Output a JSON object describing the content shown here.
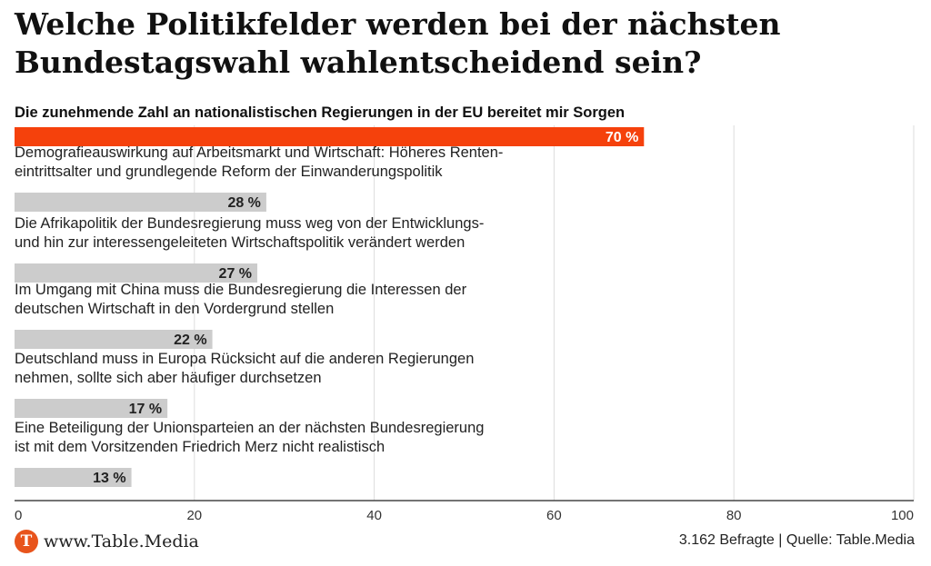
{
  "title": "Welche Politikfelder werden bei der nächsten Bundestagswahl wahlentscheidend sein?",
  "footer": {
    "logo_letter": "T",
    "site": "www.Table.Media",
    "source": "3.162 Befragte | Quelle: Table.Media"
  },
  "colors": {
    "highlight": "#f5410c",
    "bar": "#cccccc",
    "grid": "#dddddd",
    "axis": "#222222"
  },
  "chart_data": {
    "type": "bar",
    "orientation": "horizontal",
    "categories": [
      [
        "Die zunehmende Zahl an nationalistischen Regierungen in der EU bereitet mir Sorgen"
      ],
      [
        "Demografieauswirkung auf Arbeitsmarkt und Wirtschaft: Höheres Renten-",
        "eintrittsalter und grundlegende Reform der Einwanderungspolitik"
      ],
      [
        "Die Afrikapolitik der Bundesregierung muss weg von der Entwicklungs-",
        "und hin zur interessengeleiteten Wirtschaftspolitik verändert werden"
      ],
      [
        "Im Umgang mit China muss die Bundesregierung die Interessen der",
        "deutschen Wirtschaft in den Vordergrund stellen"
      ],
      [
        "Deutschland muss in Europa Rücksicht auf die anderen Regierungen",
        "nehmen, sollte sich aber häufiger durchsetzen"
      ],
      [
        "Eine Beteiligung der Unionsparteien an der nächsten Bundesregierung",
        "ist mit dem Vorsitzenden Friedrich Merz nicht realistisch"
      ]
    ],
    "values": [
      70,
      28,
      27,
      22,
      17,
      13
    ],
    "value_labels": [
      "70 %",
      "28 %",
      "27 %",
      "22 %",
      "17 %",
      "13 %"
    ],
    "highlighted_index": 0,
    "xlim": [
      0,
      100
    ],
    "xticks": [
      0,
      20,
      40,
      60,
      80,
      100
    ],
    "grid": true
  }
}
